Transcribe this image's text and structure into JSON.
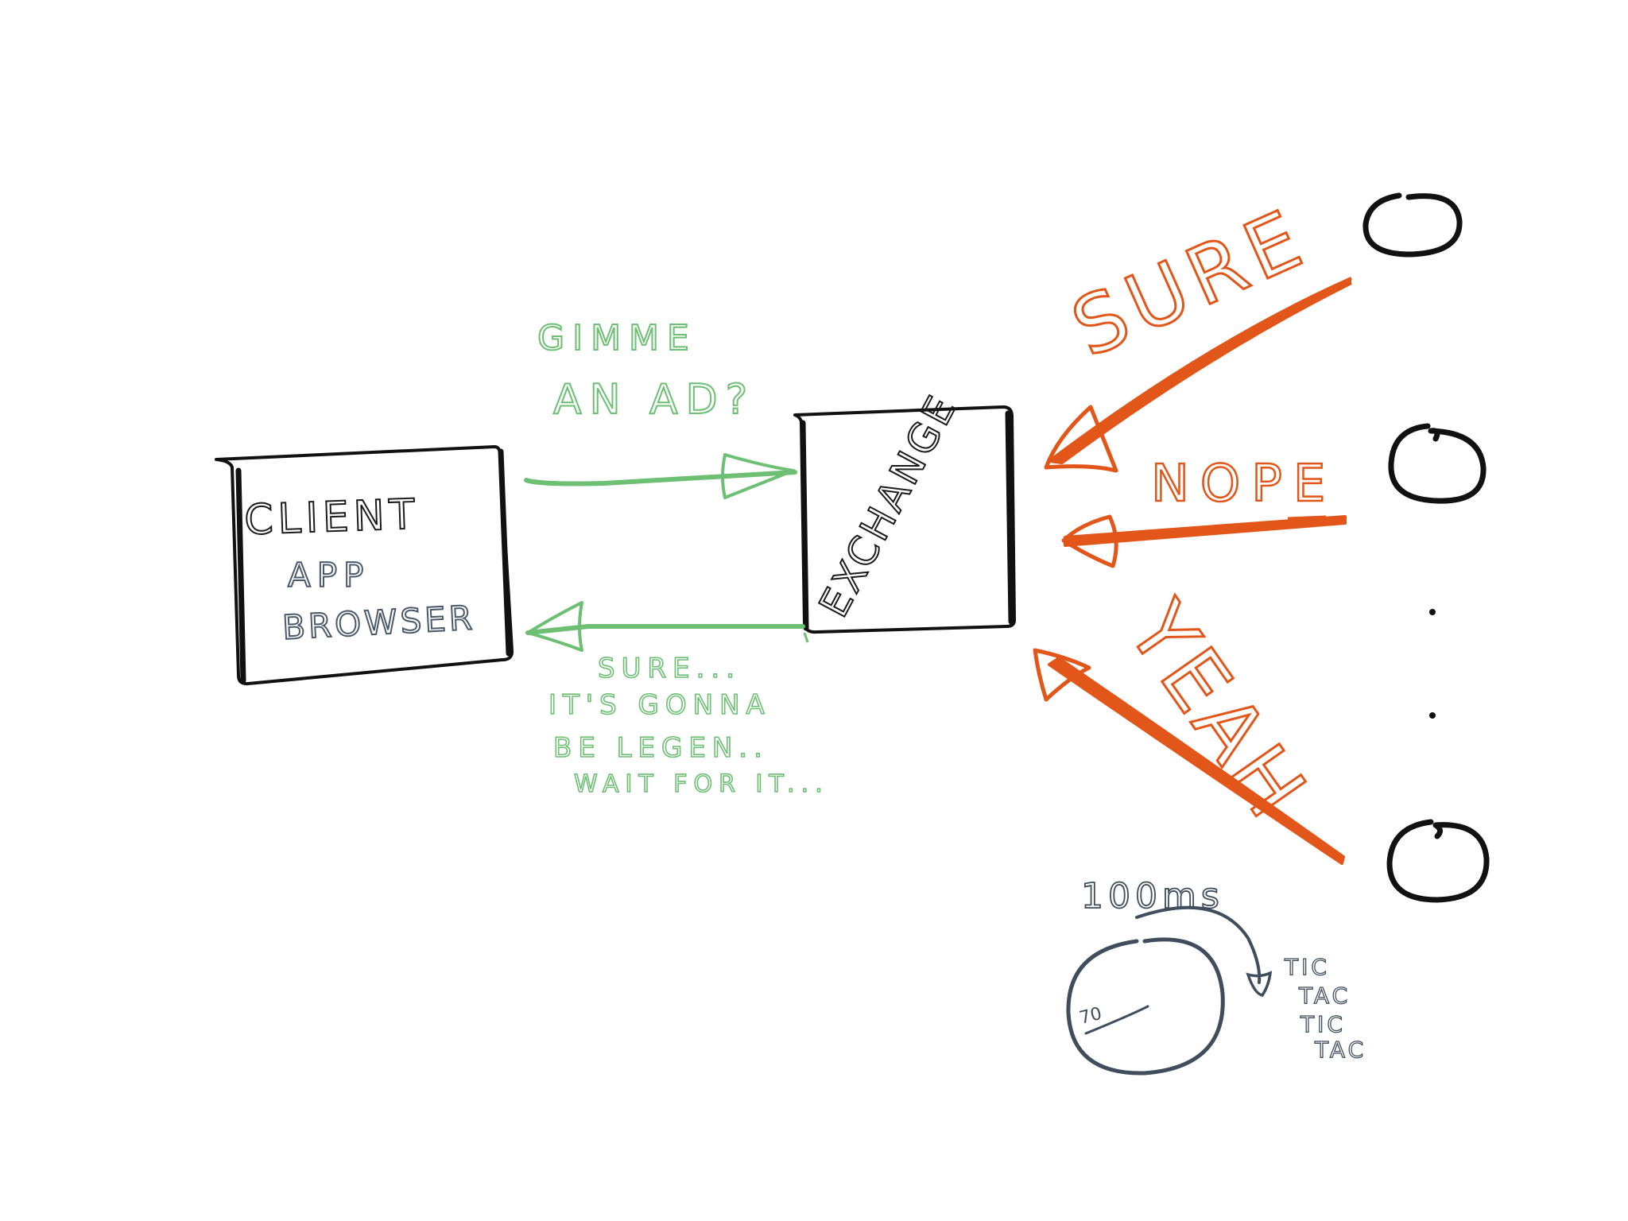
{
  "colors": {
    "green": "#6cbf73",
    "orange": "#e2561a",
    "black": "#1a1a1a",
    "slate": "#3f4d5c"
  },
  "client_box": {
    "title": "CLIENT",
    "line1": "APP",
    "line2": "BROWSER"
  },
  "exchange_box": {
    "title": "EXCHANGE"
  },
  "request": {
    "line1": "GIMME",
    "line2": "AN AD?"
  },
  "reply": {
    "line1": "SURE...",
    "line2": "IT'S GONNA",
    "line3": "BE LEGEN..",
    "line4": "WAIT FOR IT..."
  },
  "bids": {
    "top": "SURE",
    "middle": "NOPE",
    "bottom": "YEAH"
  },
  "timer": {
    "limit": "100ms",
    "dial_value": "70",
    "tick1": "TIC",
    "tick2": "TAC",
    "tick3": "TIC",
    "tick4": "TAC"
  }
}
